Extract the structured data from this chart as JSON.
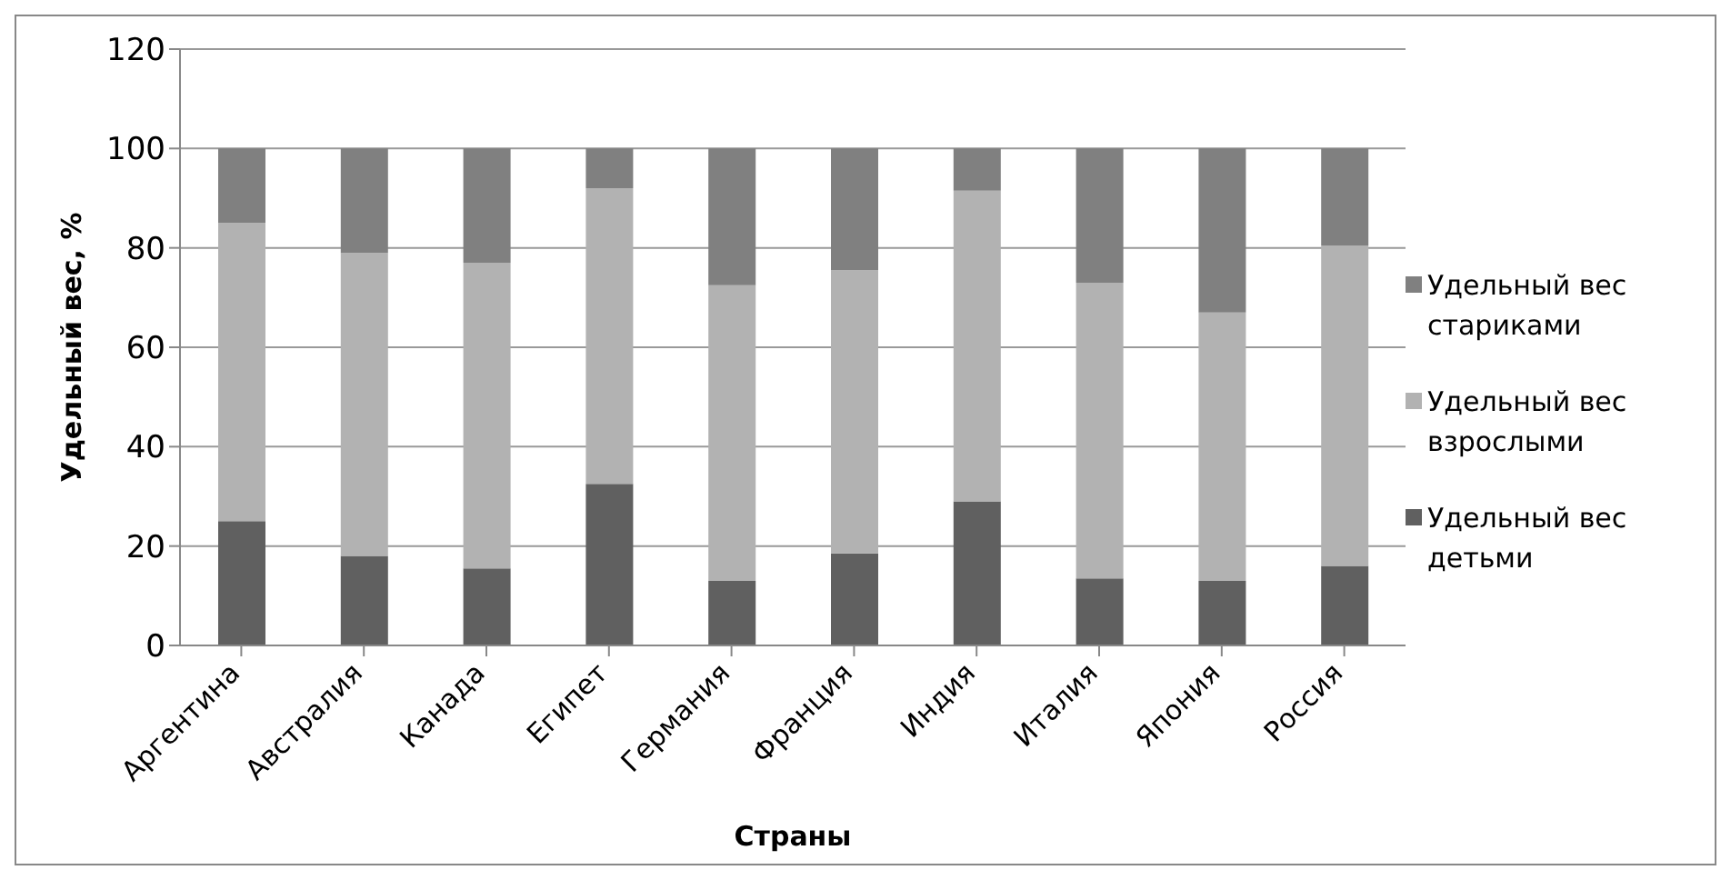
{
  "chart_data": {
    "type": "bar",
    "stacked": true,
    "xlabel": "Страны",
    "ylabel": "Удельный вес, %",
    "categories": [
      "Аргентина",
      "Австралия",
      "Канада",
      "Египет",
      "Германия",
      "Франция",
      "Индия",
      "Италия",
      "Япония",
      "Россия"
    ],
    "series": [
      {
        "name": "Удельный вес детьми",
        "color": "#606060",
        "values": [
          25,
          18,
          15.5,
          32.5,
          13,
          18.5,
          29,
          13.5,
          13,
          16
        ]
      },
      {
        "name": "Удельный вес взрослыми",
        "color": "#b2b2b2",
        "values": [
          60,
          61,
          61.5,
          59.5,
          59.5,
          57,
          62.5,
          59.5,
          54,
          64.5
        ]
      },
      {
        "name": "Удельный вес стариками",
        "color": "#808080",
        "values": [
          15,
          21,
          23,
          8,
          27.5,
          24.5,
          8.5,
          27,
          33,
          19.5
        ]
      }
    ],
    "ylim": [
      0,
      120
    ],
    "yticks": [
      0,
      20,
      40,
      60,
      80,
      100,
      120
    ],
    "grid": "y",
    "legend": "right"
  }
}
